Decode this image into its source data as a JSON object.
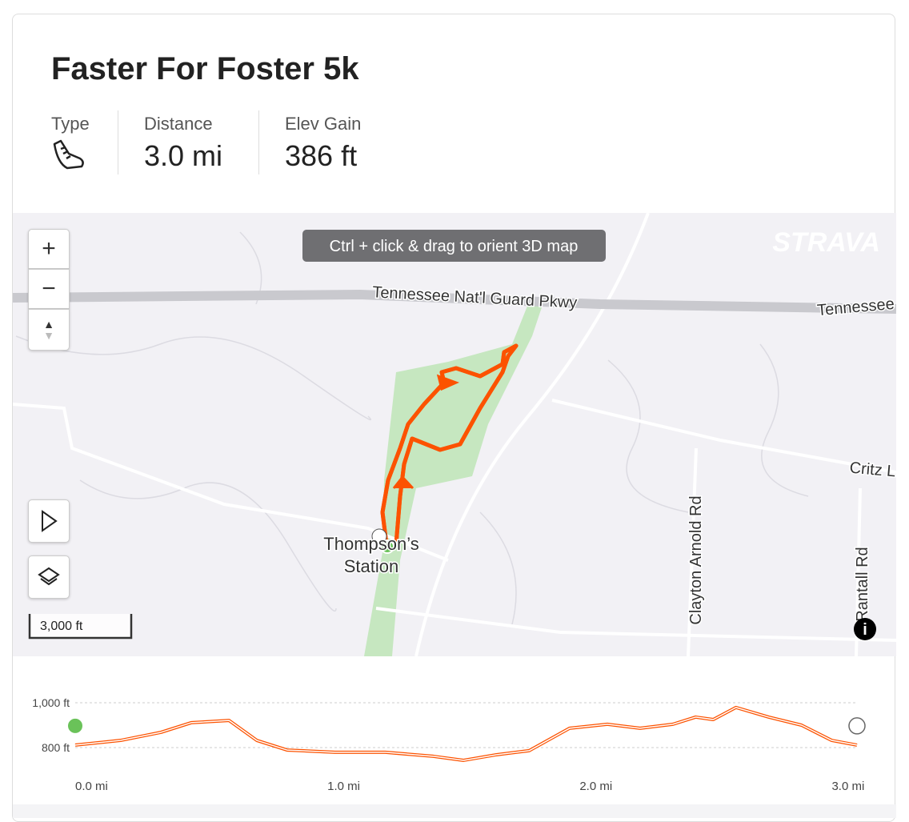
{
  "header": {
    "title": "Faster For Foster 5k"
  },
  "stats": [
    {
      "label": "Type"
    },
    {
      "label": "Distance",
      "value": "3.0 mi"
    },
    {
      "label": "Elev Gain",
      "value": "386 ft"
    }
  ],
  "map": {
    "tooltip": "Ctrl + click & drag to orient 3D map",
    "logo": "STRAVA",
    "zoom_in": "+",
    "zoom_out": "−",
    "scale": "3,000 ft",
    "labels": [
      "Tennessee Nat'l Guard Pkwy",
      "Tennessee",
      "Critz L",
      "Clayton Arnold Rd",
      "Rantall Rd",
      "Thompson’s",
      "Station"
    ]
  },
  "chart_data": {
    "type": "line",
    "color": "#fc5200",
    "x": [
      0,
      0.18,
      0.34,
      0.46,
      0.61,
      0.72,
      0.84,
      1.03,
      1.23,
      1.42,
      1.54,
      1.67,
      1.8,
      1.96,
      2.11,
      2.24,
      2.37,
      2.46,
      2.53,
      2.62,
      2.75,
      2.88,
      3.0,
      3.1
    ],
    "values": [
      811,
      832,
      868,
      911,
      921,
      832,
      789,
      779,
      779,
      761,
      743,
      768,
      786,
      886,
      904,
      886,
      904,
      936,
      925,
      979,
      936,
      900,
      832,
      811
    ],
    "xlim": [
      0,
      3.1
    ],
    "ylim": [
      700,
      1040
    ],
    "xticks": [
      {
        "value": 0,
        "label": "0.0 mi"
      },
      {
        "value": 1,
        "label": "1.0 mi"
      },
      {
        "value": 2,
        "label": "2.0 mi"
      },
      {
        "value": 3,
        "label": "3.0 mi"
      }
    ],
    "yticks": [
      {
        "value": 800,
        "label": "800 ft"
      },
      {
        "value": 1000,
        "label": "1,000 ft"
      }
    ],
    "grid": true
  }
}
